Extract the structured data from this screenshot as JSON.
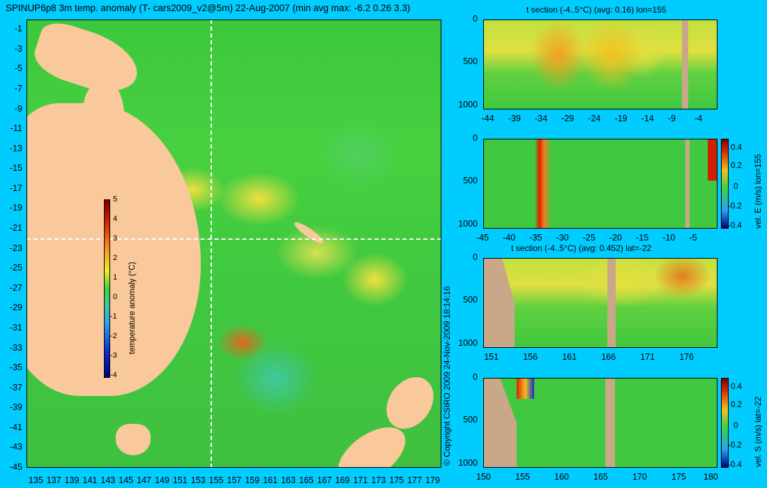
{
  "title": "SPINUP6p8 3m temp. anomaly (T- cars2009_v2@5m) 22-Aug-2007 (min avg max: -6.2 0.26 3.3)",
  "copyright": "© Copyright CSIRO 2009   24-Nov-2009 18:14:16",
  "colors": {
    "background": "#00ccff",
    "land": "#f9c89b",
    "section_land": "#c8a888",
    "ocean_green": "#40c840"
  },
  "chart_data": [
    {
      "type": "heatmap",
      "name": "map",
      "x_ticks": [
        "135",
        "137",
        "139",
        "141",
        "143",
        "145",
        "147",
        "149",
        "151",
        "153",
        "155",
        "157",
        "159",
        "161",
        "163",
        "165",
        "167",
        "169",
        "171",
        "173",
        "175",
        "177",
        "179"
      ],
      "y_ticks": [
        "-1",
        "-3",
        "-5",
        "-7",
        "-9",
        "-11",
        "-13",
        "-15",
        "-17",
        "-19",
        "-21",
        "-23",
        "-25",
        "-27",
        "-29",
        "-31",
        "-33",
        "-35",
        "-37",
        "-39",
        "-41",
        "-43",
        "-45"
      ],
      "xlim": [
        134,
        180
      ],
      "ylim": [
        -45,
        0
      ],
      "crosshair": {
        "lon": 155,
        "lat": -22
      },
      "colorbar": {
        "label": "temperature anomaly (°C)",
        "ticks": [
          "5",
          "4",
          "3",
          "2",
          "1",
          "0",
          "-1",
          "-2",
          "-3",
          "-4"
        ],
        "range": [
          -4,
          5
        ]
      }
    },
    {
      "type": "heatmap",
      "name": "section1",
      "title": "t section (-4..5°C) (avg: 0.16) lon=155",
      "x_ticks": [
        "-44",
        "-39",
        "-34",
        "-29",
        "-24",
        "-19",
        "-14",
        "-9",
        "-4"
      ],
      "xlim": [
        -45,
        -1
      ],
      "y_ticks": [
        "0",
        "500",
        "1000"
      ],
      "ylim": [
        1050,
        0
      ]
    },
    {
      "type": "heatmap",
      "name": "section2",
      "title": "",
      "x_ticks": [
        "-45",
        "-40",
        "-35",
        "-30",
        "-25",
        "-20",
        "-15",
        "-10",
        "-5"
      ],
      "xlim": [
        -45,
        -1
      ],
      "y_ticks": [
        "0",
        "500",
        "1000"
      ],
      "ylim": [
        1050,
        0
      ],
      "colorbar": {
        "label": "vel. E (m/s) lon=155",
        "ticks": [
          "0.4",
          "0.2",
          "0",
          "-0.2",
          "-0.4"
        ],
        "range": [
          -0.4,
          0.5
        ]
      }
    },
    {
      "type": "heatmap",
      "name": "section3",
      "title": "t section (-4..5°C) (avg: 0.452) lat=-22",
      "x_ticks": [
        "151",
        "156",
        "161",
        "166",
        "171",
        "176"
      ],
      "xlim": [
        150,
        180
      ],
      "y_ticks": [
        "0",
        "500",
        "1000"
      ],
      "ylim": [
        1050,
        0
      ]
    },
    {
      "type": "heatmap",
      "name": "section4",
      "title": "",
      "x_ticks": [
        "150",
        "155",
        "160",
        "165",
        "170",
        "175",
        "180"
      ],
      "xlim": [
        150,
        180
      ],
      "y_ticks": [
        "0",
        "500",
        "1000"
      ],
      "ylim": [
        1050,
        0
      ],
      "colorbar": {
        "label": "vel. S (m/s) lat=-22",
        "ticks": [
          "0.4",
          "0.2",
          "0",
          "-0.2",
          "-0.4"
        ],
        "range": [
          -0.4,
          0.5
        ]
      }
    }
  ]
}
